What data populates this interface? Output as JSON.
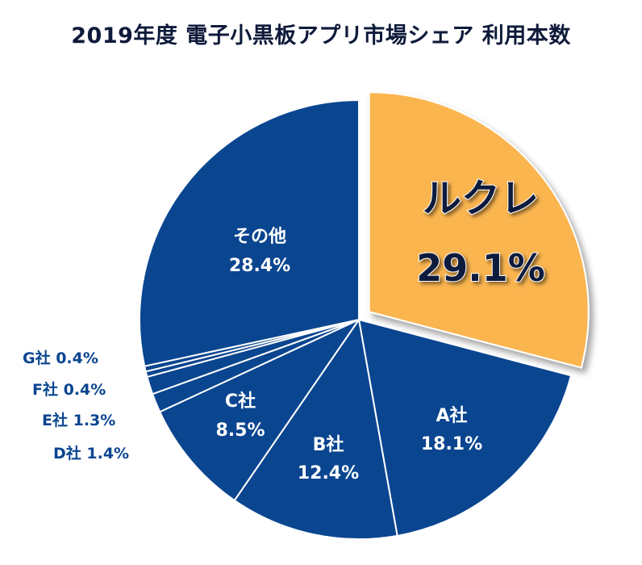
{
  "chart_data": {
    "type": "pie",
    "title": "2019年度 電子小黒板アプリ市場シェア 利用本数",
    "slices": [
      {
        "name": "ルクレ",
        "value_label": "29.1%",
        "value": 29.1,
        "color": "#fbb550",
        "text_color": "#111a3d",
        "highlighted": true
      },
      {
        "name": "A社",
        "value_label": "18.1%",
        "value": 18.1,
        "color": "#0a4590",
        "text_color": "#ffffff"
      },
      {
        "name": "B社",
        "value_label": "12.4%",
        "value": 12.4,
        "color": "#0a4590",
        "text_color": "#ffffff"
      },
      {
        "name": "C社",
        "value_label": "8.5%",
        "value": 8.5,
        "color": "#0a4590",
        "text_color": "#ffffff"
      },
      {
        "name": "D社",
        "value_label": "1.4%",
        "value": 1.4,
        "color": "#0a4590",
        "text_color": "#0a4590",
        "outside": true
      },
      {
        "name": "E社",
        "value_label": "1.3%",
        "value": 1.3,
        "color": "#0a4590",
        "text_color": "#0a4590",
        "outside": true
      },
      {
        "name": "F社",
        "value_label": "0.4%",
        "value": 0.4,
        "color": "#0a4590",
        "text_color": "#0a4590",
        "outside": true
      },
      {
        "name": "G社",
        "value_label": "0.4%",
        "value": 0.4,
        "color": "#0a4590",
        "text_color": "#0a4590",
        "outside": true
      },
      {
        "name": "その他",
        "value_label": "28.4%",
        "value": 28.4,
        "color": "#0a4590",
        "text_color": "#ffffff"
      }
    ]
  }
}
